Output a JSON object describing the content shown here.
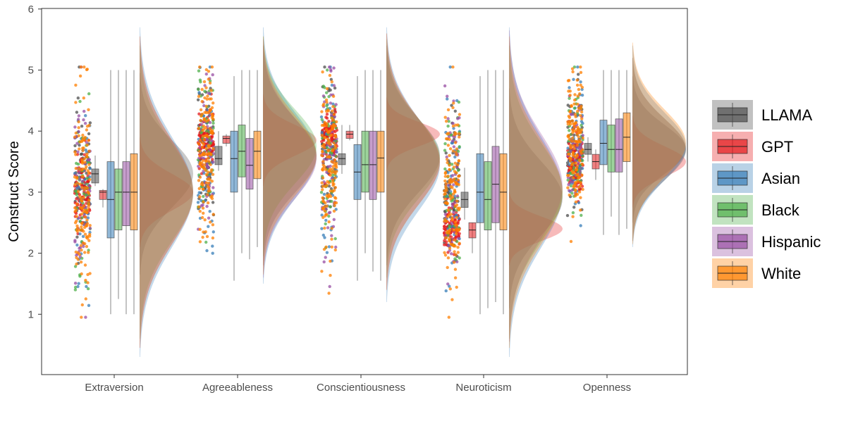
{
  "chart_data": {
    "type": "raincloud",
    "title": "",
    "xlabel": "",
    "ylabel": "Construct Score",
    "ylim": [
      0,
      6
    ],
    "yticks": [
      1,
      2,
      3,
      4,
      5,
      6
    ],
    "grid": false,
    "legend_position": "right",
    "categories": [
      "Extraversion",
      "Agreeableness",
      "Conscientiousness",
      "Neuroticism",
      "Openness"
    ],
    "series": [
      {
        "name": "LLAMA",
        "color": "#4D4D4D",
        "boxes": [
          {
            "min": 3.1,
            "q1": 3.15,
            "median": 3.3,
            "q3": 3.38,
            "max": 3.6
          },
          {
            "min": 3.35,
            "q1": 3.45,
            "median": 3.55,
            "q3": 3.75,
            "max": 4.0
          },
          {
            "min": 3.3,
            "q1": 3.45,
            "median": 3.55,
            "q3": 3.63,
            "max": 4.1
          },
          {
            "min": 2.55,
            "q1": 2.75,
            "median": 2.88,
            "q3": 3.0,
            "max": 3.4
          },
          {
            "min": 3.5,
            "q1": 3.62,
            "median": 3.7,
            "q3": 3.8,
            "max": 3.9
          }
        ],
        "density_mean": [
          3.3,
          3.6,
          3.6,
          2.9,
          3.7
        ],
        "density_sd": [
          0.55,
          0.6,
          0.6,
          0.6,
          0.4
        ],
        "point_count": [
          60,
          60,
          60,
          60,
          60
        ]
      },
      {
        "name": "GPT",
        "color": "#E41A1C",
        "boxes": [
          {
            "min": 2.75,
            "q1": 2.88,
            "median": 3.0,
            "q3": 3.03,
            "max": 3.05
          },
          {
            "min": 3.75,
            "q1": 3.8,
            "median": 3.88,
            "q3": 3.92,
            "max": 3.95
          },
          {
            "min": 3.85,
            "q1": 3.88,
            "median": 3.95,
            "q3": 4.0,
            "max": 4.1
          },
          {
            "min": 2.0,
            "q1": 2.25,
            "median": 2.38,
            "q3": 2.5,
            "max": 2.5
          },
          {
            "min": 3.2,
            "q1": 3.38,
            "median": 3.5,
            "q3": 3.62,
            "max": 3.7
          }
        ],
        "density_mean": [
          3.0,
          3.85,
          3.95,
          2.4,
          3.5
        ],
        "density_sd": [
          0.3,
          0.25,
          0.2,
          0.2,
          0.25
        ],
        "point_count": [
          90,
          90,
          90,
          90,
          90
        ]
      },
      {
        "name": "Asian",
        "color": "#377EB8",
        "boxes": [
          {
            "min": 1.0,
            "q1": 2.25,
            "median": 2.88,
            "q3": 3.5,
            "max": 5.0
          },
          {
            "min": 1.55,
            "q1": 3.0,
            "median": 3.55,
            "q3": 4.0,
            "max": 4.9
          },
          {
            "min": 1.55,
            "q1": 2.88,
            "median": 3.33,
            "q3": 3.78,
            "max": 4.9
          },
          {
            "min": 1.0,
            "q1": 2.5,
            "median": 3.0,
            "q3": 3.63,
            "max": 4.9
          },
          {
            "min": 2.3,
            "q1": 3.45,
            "median": 3.8,
            "q3": 4.18,
            "max": 5.0
          }
        ],
        "density_mean": [
          3.0,
          3.6,
          3.45,
          3.0,
          3.75
        ],
        "density_sd": [
          0.9,
          0.7,
          0.75,
          0.9,
          0.55
        ],
        "point_count": [
          50,
          50,
          50,
          50,
          50
        ]
      },
      {
        "name": "Black",
        "color": "#4DAF4A",
        "boxes": [
          {
            "min": 1.25,
            "q1": 2.38,
            "median": 3.0,
            "q3": 3.38,
            "max": 5.0
          },
          {
            "min": 2.0,
            "q1": 3.25,
            "median": 3.67,
            "q3": 4.1,
            "max": 5.0
          },
          {
            "min": 2.0,
            "q1": 3.0,
            "median": 3.45,
            "q3": 4.0,
            "max": 5.0
          },
          {
            "min": 1.1,
            "q1": 2.38,
            "median": 2.88,
            "q3": 3.5,
            "max": 5.0
          },
          {
            "min": 2.6,
            "q1": 3.33,
            "median": 3.7,
            "q3": 4.1,
            "max": 5.0
          }
        ],
        "density_mean": [
          3.0,
          3.75,
          3.55,
          3.0,
          3.7
        ],
        "density_sd": [
          0.8,
          0.6,
          0.65,
          0.8,
          0.5
        ],
        "point_count": [
          50,
          50,
          50,
          50,
          50
        ]
      },
      {
        "name": "Hispanic",
        "color": "#984EA3",
        "boxes": [
          {
            "min": 1.0,
            "q1": 2.45,
            "median": 3.0,
            "q3": 3.5,
            "max": 5.0
          },
          {
            "min": 1.9,
            "q1": 3.05,
            "median": 3.44,
            "q3": 3.88,
            "max": 5.0
          },
          {
            "min": 1.7,
            "q1": 2.88,
            "median": 3.45,
            "q3": 4.0,
            "max": 5.0
          },
          {
            "min": 1.2,
            "q1": 2.5,
            "median": 3.13,
            "q3": 3.75,
            "max": 5.0
          },
          {
            "min": 2.3,
            "q1": 3.33,
            "median": 3.7,
            "q3": 4.2,
            "max": 5.0
          }
        ],
        "density_mean": [
          3.0,
          3.55,
          3.5,
          3.1,
          3.7
        ],
        "density_sd": [
          0.85,
          0.65,
          0.7,
          0.85,
          0.5
        ],
        "point_count": [
          50,
          50,
          50,
          50,
          50
        ]
      },
      {
        "name": "White",
        "color": "#FF7F00",
        "boxes": [
          {
            "min": 1.0,
            "q1": 2.38,
            "median": 3.0,
            "q3": 3.63,
            "max": 5.0
          },
          {
            "min": 2.1,
            "q1": 3.22,
            "median": 3.67,
            "q3": 4.0,
            "max": 5.0
          },
          {
            "min": 1.55,
            "q1": 3.0,
            "median": 3.56,
            "q3": 4.0,
            "max": 5.0
          },
          {
            "min": 1.0,
            "q1": 2.38,
            "median": 3.0,
            "q3": 3.63,
            "max": 5.0
          },
          {
            "min": 2.4,
            "q1": 3.5,
            "median": 3.9,
            "q3": 4.3,
            "max": 5.0
          }
        ],
        "density_mean": [
          3.0,
          3.6,
          3.5,
          3.0,
          3.8
        ],
        "density_sd": [
          0.85,
          0.65,
          0.7,
          0.85,
          0.55
        ],
        "point_count": [
          140,
          140,
          140,
          140,
          140
        ]
      }
    ]
  }
}
